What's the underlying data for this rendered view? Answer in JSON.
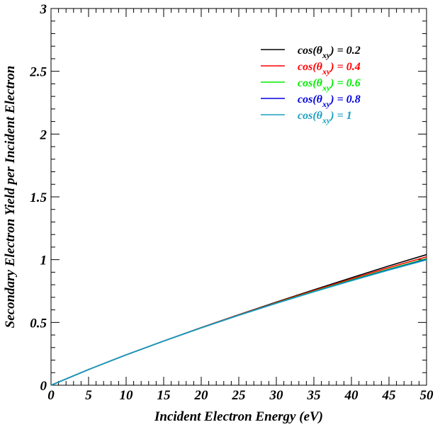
{
  "chart_data": {
    "type": "line",
    "xlabel": "Incident Electron Energy (eV)",
    "ylabel": "Secondary Electron Yield per Incident Electron",
    "xlim": [
      0,
      50
    ],
    "ylim": [
      0,
      3
    ],
    "x_ticks": [
      "0",
      "5",
      "10",
      "15",
      "20",
      "25",
      "30",
      "35",
      "40",
      "45",
      "50"
    ],
    "y_ticks": [
      "0",
      "0.5",
      "1",
      "1.5",
      "2",
      "2.5",
      "3"
    ],
    "grid": false,
    "legend_position": "top-right",
    "x": [
      0,
      5,
      10,
      15,
      20,
      25,
      30,
      35,
      40,
      45,
      50
    ],
    "series": [
      {
        "name": "cos(θxy) = 0.2",
        "color": "#000000",
        "values": [
          0,
          0.125,
          0.242,
          0.352,
          0.459,
          0.562,
          0.662,
          0.76,
          0.856,
          0.95,
          1.04
        ]
      },
      {
        "name": "cos(θxy) = 0.4",
        "color": "#ff0000",
        "values": [
          0,
          0.125,
          0.242,
          0.352,
          0.458,
          0.56,
          0.658,
          0.754,
          0.846,
          0.937,
          1.022
        ]
      },
      {
        "name": "cos(θxy) = 0.6",
        "color": "#00ee00",
        "values": [
          0,
          0.125,
          0.242,
          0.352,
          0.457,
          0.558,
          0.655,
          0.748,
          0.838,
          0.925,
          1.008
        ]
      },
      {
        "name": "cos(θxy) = 0.8",
        "color": "#0000dd",
        "values": [
          0,
          0.125,
          0.242,
          0.352,
          0.457,
          0.557,
          0.653,
          0.745,
          0.834,
          0.92,
          1.002
        ]
      },
      {
        "name": "cos(θxy) = 1",
        "color": "#1aa0c0",
        "values": [
          0,
          0.125,
          0.242,
          0.352,
          0.457,
          0.557,
          0.652,
          0.744,
          0.832,
          0.917,
          0.998
        ]
      }
    ],
    "legend": [
      {
        "prefix": "cos(θ",
        "sub": "xy",
        "suffix": ") = 0.2",
        "color": "#000000"
      },
      {
        "prefix": "cos(θ",
        "sub": "xy",
        "suffix": ") = 0.4",
        "color": "#ff0000"
      },
      {
        "prefix": "cos(θ",
        "sub": "xy",
        "suffix": ") = 0.6",
        "color": "#00ee00"
      },
      {
        "prefix": "cos(θ",
        "sub": "xy",
        "suffix": ") = 0.8",
        "color": "#0000dd"
      },
      {
        "prefix": "cos(θ",
        "sub": "xy",
        "suffix": ") = 1",
        "color": "#1aa0c0"
      }
    ]
  }
}
